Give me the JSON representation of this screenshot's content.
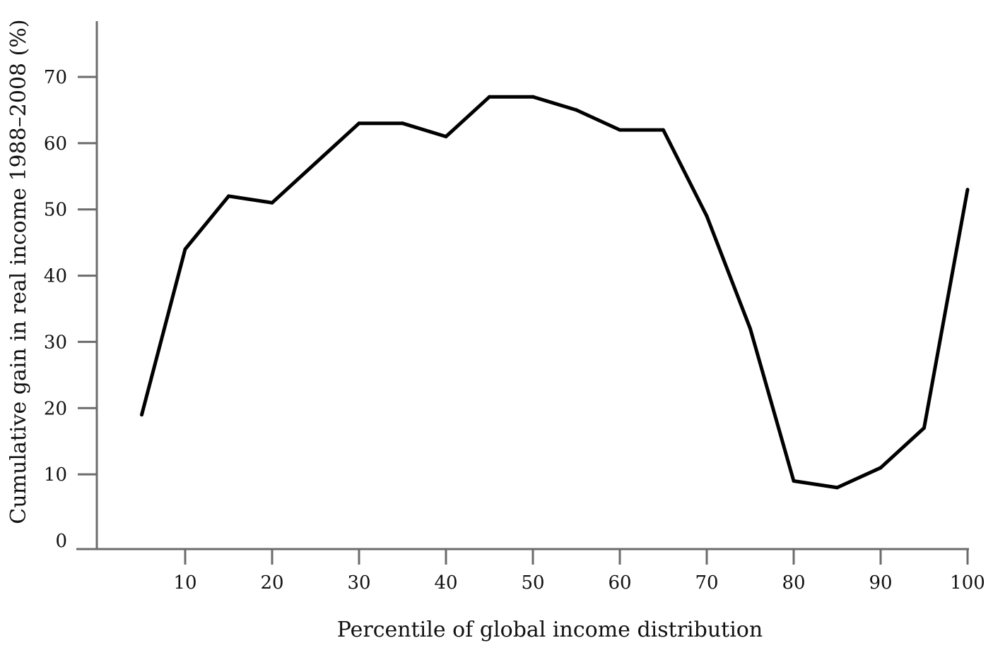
{
  "chart_data": {
    "type": "line",
    "xlabel": "Percentile of global income distribution",
    "ylabel": "Cumulative gain in real income 1988–2008 (%)",
    "xlim": [
      0,
      100
    ],
    "ylim": [
      0,
      70
    ],
    "x_ticks": [
      10,
      20,
      30,
      40,
      50,
      60,
      70,
      80,
      90,
      100
    ],
    "x_tick_labels": [
      "10",
      "20",
      "30",
      "40",
      "50",
      "60",
      "70",
      "80",
      "90",
      "100"
    ],
    "y_ticks": [
      0,
      10,
      20,
      30,
      40,
      50,
      60,
      70
    ],
    "y_tick_labels": [
      "0",
      "10",
      "20",
      "30",
      "40",
      "50",
      "60",
      "70"
    ],
    "grid": false,
    "legend": "none",
    "line_color": "#000000",
    "axis_color": "#6b6b6b",
    "series": [
      {
        "x": [
          5,
          10,
          15,
          20,
          25,
          30,
          35,
          40,
          45,
          50,
          55,
          60,
          65,
          70,
          75,
          80,
          85,
          90,
          95,
          100
        ],
        "y": [
          19,
          44,
          52,
          51,
          57,
          63,
          63,
          61,
          67,
          67,
          65,
          62,
          62,
          49,
          32,
          9,
          8,
          11,
          17,
          53
        ]
      }
    ]
  }
}
